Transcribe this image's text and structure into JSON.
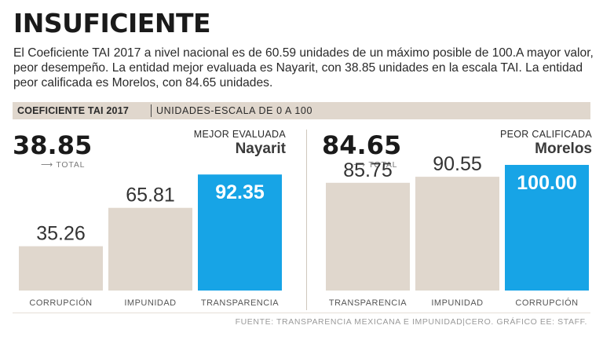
{
  "headline": "INSUFICIENTE",
  "intro": "El Coeficiente TAI 2017 a nivel nacional es de 60.59 unidades de un máximo posible de 100.A mayor valor, peor desempeño. La entidad mejor evaluada es Nayarit, con 38.85 unidades en la escala TAI. La entidad peor calificada es Morelos, con 84.65 unidades.",
  "band": {
    "title": "COEFICIENTE TAI 2017",
    "subtitle": "UNIDADES-ESCALA DE 0 A 100"
  },
  "colors": {
    "bar": "#e0d7cd",
    "highlight": "#17a4e6",
    "accent_text": "#ffffff"
  },
  "panels": [
    {
      "score": "38.85",
      "total_label": "TOTAL",
      "arrow_icon": "arrow-right-icon",
      "tag_line1": "MEJOR EVALUADA",
      "tag_line2": "Nayarit"
    },
    {
      "score": "84.65",
      "total_label": "TOTAL",
      "arrow_icon": "arrow-right-icon",
      "tag_line1": "PEOR CALIFICADA",
      "tag_line2": "Morelos"
    }
  ],
  "chart_data": [
    {
      "type": "bar",
      "title": "Nayarit",
      "categories": [
        "CORRUPCIÓN",
        "IMPUNIDAD",
        "TRANSPARENCIA"
      ],
      "values": [
        35.26,
        65.81,
        92.35
      ],
      "labels": [
        "35.26",
        "65.81",
        "92.35"
      ],
      "highlight_index": 2,
      "ylim": [
        0,
        100
      ]
    },
    {
      "type": "bar",
      "title": "Morelos",
      "categories": [
        "TRANSPARENCIA",
        "IMPUNIDAD",
        "CORRUPCIÓN"
      ],
      "values": [
        85.75,
        90.55,
        100.0
      ],
      "labels": [
        "85.75",
        "90.55",
        "100.00"
      ],
      "highlight_index": 2,
      "ylim": [
        0,
        100
      ]
    }
  ],
  "source": "FUENTE: TRANSPARENCIA MEXICANA E IMPUNIDAD|CERO. GRÁFICO EE: STAFF."
}
